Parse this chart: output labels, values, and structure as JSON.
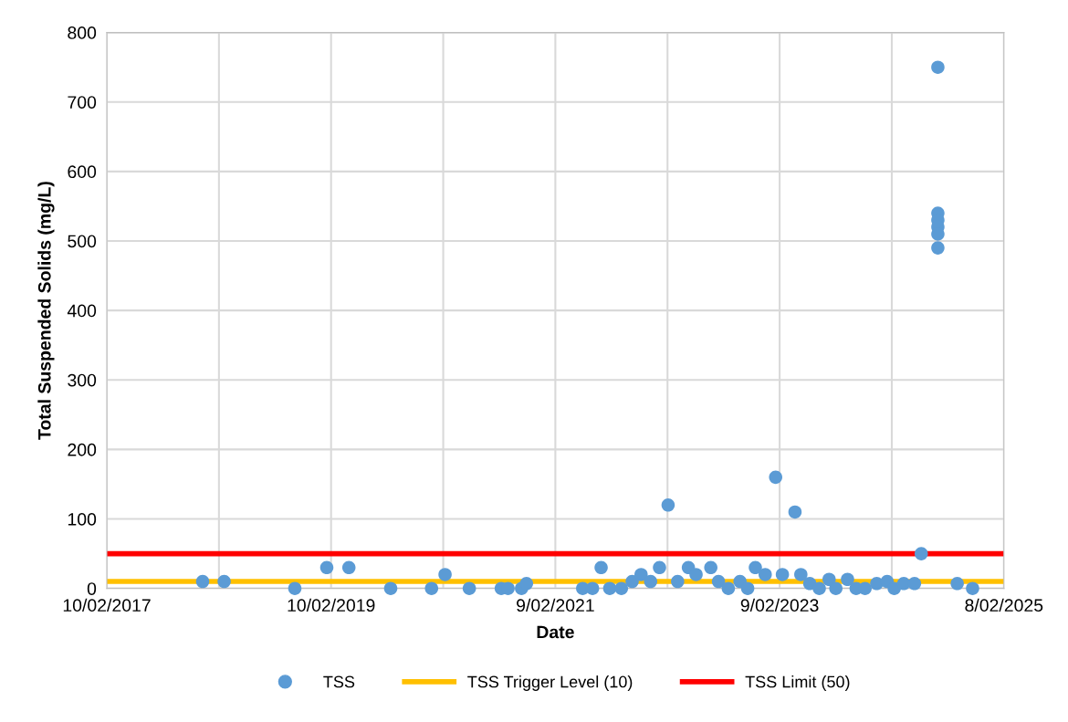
{
  "chart_data": {
    "type": "scatter",
    "xlabel": "Date",
    "ylabel": "Total Suspended Solids (mg/L)",
    "xlim": [
      "2017-02-10",
      "2025-02-08"
    ],
    "xticks": [
      {
        "value": "2017-02-10",
        "label": "10/02/2017"
      },
      {
        "value": "2018-02-10",
        "label": null
      },
      {
        "value": "2019-02-10",
        "label": "10/02/2019"
      },
      {
        "value": "2020-02-10",
        "label": null
      },
      {
        "value": "2021-02-09",
        "label": "9/02/2021"
      },
      {
        "value": "2022-02-09",
        "label": null
      },
      {
        "value": "2023-02-09",
        "label": "9/02/2023"
      },
      {
        "value": "2024-02-09",
        "label": null
      },
      {
        "value": "2025-02-08",
        "label": "8/02/2025"
      }
    ],
    "ylim": [
      0,
      800
    ],
    "yticks": [
      0,
      100,
      200,
      300,
      400,
      500,
      600,
      700,
      800
    ],
    "grid": true,
    "legend": "bottom",
    "marker": "circle",
    "series": [
      {
        "name": "TSS",
        "color": "#5b9bd5",
        "x": [
          "2017-12-19",
          "2018-02-27",
          "2018-10-15",
          "2019-01-27",
          "2019-04-09",
          "2019-08-23",
          "2020-01-03",
          "2020-02-16",
          "2020-05-05",
          "2020-08-17",
          "2020-09-08",
          "2020-10-22",
          "2020-11-07",
          "2021-05-09",
          "2021-06-10",
          "2021-07-08",
          "2021-08-05",
          "2021-09-12",
          "2021-10-17",
          "2021-11-15",
          "2021-12-16",
          "2022-01-14",
          "2022-02-11",
          "2022-03-14",
          "2022-04-18",
          "2022-05-13",
          "2022-06-30",
          "2022-07-25",
          "2022-08-26",
          "2022-10-03",
          "2022-10-28",
          "2022-11-22",
          "2022-12-24",
          "2023-01-27",
          "2023-02-18",
          "2023-03-31",
          "2023-04-19",
          "2023-05-18",
          "2023-06-18",
          "2023-07-20",
          "2023-08-11",
          "2023-09-18",
          "2023-10-16",
          "2023-11-14",
          "2023-12-22",
          "2024-01-25",
          "2024-02-17",
          "2024-03-19",
          "2024-04-23",
          "2024-05-15",
          "2024-07-08",
          "2024-07-08",
          "2024-07-08",
          "2024-07-08",
          "2024-07-08",
          "2024-07-08",
          "2024-09-09",
          "2024-10-29"
        ],
        "values": [
          10,
          10,
          0,
          30,
          30,
          0,
          0,
          20,
          0,
          0,
          0,
          0,
          7,
          0,
          0,
          30,
          0,
          0,
          10,
          20,
          10,
          30,
          120,
          10,
          30,
          20,
          30,
          10,
          0,
          10,
          0,
          30,
          20,
          160,
          20,
          110,
          20,
          7,
          0,
          13,
          0,
          13,
          0,
          0,
          7,
          10,
          0,
          7,
          7,
          50,
          750,
          540,
          530,
          520,
          510,
          490,
          7,
          0
        ]
      }
    ],
    "ref_lines": [
      {
        "axis": "y",
        "value": 10,
        "label": "TSS Trigger Level (10)",
        "color": "#ffc000"
      },
      {
        "axis": "y",
        "value": 50,
        "label": "TSS Limit (50)",
        "color": "#ff0000"
      }
    ]
  }
}
